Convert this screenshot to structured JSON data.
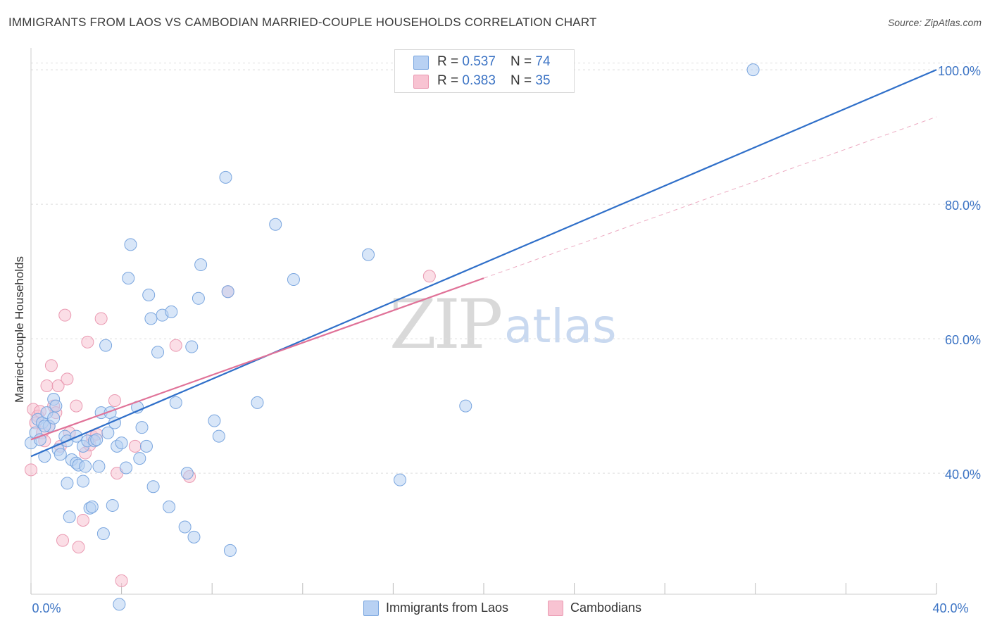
{
  "header": {
    "title": "IMMIGRANTS FROM LAOS VS CAMBODIAN MARRIED-COUPLE HOUSEHOLDS CORRELATION CHART",
    "source_prefix": "Source: ",
    "source_name": "ZipAtlas.com"
  },
  "watermark": {
    "zip": "ZIP",
    "atlas": "atlas"
  },
  "stats_legend": [
    {
      "r_label": "R = ",
      "r_value": "0.537",
      "n_label": "N = ",
      "n_value": "74"
    },
    {
      "r_label": "R = ",
      "r_value": "0.383",
      "n_label": "N = ",
      "n_value": "35"
    }
  ],
  "colors": {
    "laos_fill": "#b8d1f3",
    "laos_stroke": "#7aa6df",
    "laos_line": "#2f6fc9",
    "camb_fill": "#f8c3d2",
    "camb_stroke": "#ea9ab2",
    "camb_line": "#e07298",
    "axis_label": "#3b73c4",
    "grid": "#dddddd"
  },
  "chart_data": {
    "type": "scatter",
    "title": "IMMIGRANTS FROM LAOS VS CAMBODIAN MARRIED-COUPLE HOUSEHOLDS CORRELATION CHART",
    "xlabel": "",
    "ylabel": "Married-couple Households",
    "xlim": [
      0,
      40
    ],
    "ylim": [
      22,
      102
    ],
    "x_tick_labels": [
      {
        "value": 0,
        "label": "0.0%"
      },
      {
        "value": 40,
        "label": "40.0%"
      }
    ],
    "y_tick_labels": [
      {
        "value": 40,
        "label": "40.0%"
      },
      {
        "value": 60,
        "label": "60.0%"
      },
      {
        "value": 80,
        "label": "80.0%"
      },
      {
        "value": 100,
        "label": "100.0%"
      }
    ],
    "x_minor_ticks": [
      0,
      4,
      8,
      12,
      16,
      20,
      24,
      28,
      32,
      36,
      40
    ],
    "series": [
      {
        "name": "Immigrants from Laos",
        "R": 0.537,
        "N": 74,
        "trend": {
          "x0": 0,
          "y0": 42.5,
          "x1": 40,
          "y1": 100,
          "style": "solid",
          "x_end": 40
        },
        "points": [
          [
            0.0,
            44.5
          ],
          [
            0.2,
            46.0
          ],
          [
            0.3,
            48.0
          ],
          [
            0.4,
            45.0
          ],
          [
            0.5,
            47.5
          ],
          [
            0.6,
            42.5
          ],
          [
            0.7,
            49.0
          ],
          [
            0.8,
            47.0
          ],
          [
            1.0,
            51.0
          ],
          [
            1.1,
            50.0
          ],
          [
            1.2,
            43.5
          ],
          [
            1.3,
            42.8
          ],
          [
            1.5,
            45.5
          ],
          [
            1.6,
            44.8
          ],
          [
            1.6,
            38.5
          ],
          [
            1.7,
            33.5
          ],
          [
            1.8,
            42.0
          ],
          [
            2.0,
            41.5
          ],
          [
            2.0,
            45.5
          ],
          [
            2.1,
            41.2
          ],
          [
            2.3,
            44.0
          ],
          [
            2.3,
            38.8
          ],
          [
            2.4,
            41.0
          ],
          [
            2.5,
            44.8
          ],
          [
            2.6,
            34.8
          ],
          [
            2.7,
            35.0
          ],
          [
            2.8,
            44.8
          ],
          [
            3.0,
            41.0
          ],
          [
            3.1,
            49.0
          ],
          [
            3.2,
            31.0
          ],
          [
            3.3,
            59.0
          ],
          [
            3.4,
            46.0
          ],
          [
            3.5,
            49.0
          ],
          [
            3.6,
            35.2
          ],
          [
            3.7,
            47.5
          ],
          [
            3.8,
            44.0
          ],
          [
            3.9,
            20.5
          ],
          [
            4.0,
            44.5
          ],
          [
            4.2,
            40.8
          ],
          [
            4.3,
            69.0
          ],
          [
            4.4,
            74.0
          ],
          [
            4.7,
            49.8
          ],
          [
            4.8,
            42.2
          ],
          [
            4.9,
            46.8
          ],
          [
            5.1,
            44.0
          ],
          [
            5.2,
            66.5
          ],
          [
            5.3,
            63.0
          ],
          [
            5.4,
            38.0
          ],
          [
            5.6,
            58.0
          ],
          [
            5.8,
            63.5
          ],
          [
            6.1,
            35.0
          ],
          [
            6.2,
            64.0
          ],
          [
            6.4,
            50.5
          ],
          [
            6.8,
            32.0
          ],
          [
            6.9,
            40.0
          ],
          [
            7.1,
            58.8
          ],
          [
            7.2,
            30.5
          ],
          [
            7.4,
            66.0
          ],
          [
            7.5,
            71.0
          ],
          [
            8.1,
            47.8
          ],
          [
            8.3,
            45.5
          ],
          [
            8.6,
            84.0
          ],
          [
            8.7,
            67.0
          ],
          [
            8.8,
            28.5
          ],
          [
            10.0,
            50.5
          ],
          [
            10.8,
            77.0
          ],
          [
            11.6,
            68.8
          ],
          [
            14.9,
            72.5
          ],
          [
            16.3,
            39.0
          ],
          [
            19.2,
            50.0
          ],
          [
            31.9,
            100.0
          ],
          [
            2.9,
            45.0
          ],
          [
            1.0,
            48.2
          ],
          [
            0.6,
            47.0
          ]
        ]
      },
      {
        "name": "Cambodians",
        "R": 0.383,
        "N": 35,
        "trend": {
          "x0": 0,
          "y0": 45.0,
          "x1": 40,
          "y1": 93.0,
          "style": "solid-then-dashed",
          "x_end": 40,
          "solid_until": 20.0
        },
        "points": [
          [
            0.0,
            40.5
          ],
          [
            0.1,
            49.5
          ],
          [
            0.3,
            48.5
          ],
          [
            0.4,
            49.2
          ],
          [
            0.5,
            46.0
          ],
          [
            0.6,
            44.8
          ],
          [
            0.7,
            53.0
          ],
          [
            0.8,
            47.0
          ],
          [
            0.9,
            56.0
          ],
          [
            1.0,
            50.0
          ],
          [
            1.2,
            53.0
          ],
          [
            1.3,
            44.0
          ],
          [
            1.4,
            30.0
          ],
          [
            1.5,
            63.5
          ],
          [
            1.6,
            54.0
          ],
          [
            1.7,
            46.0
          ],
          [
            2.0,
            50.0
          ],
          [
            2.1,
            29.0
          ],
          [
            2.3,
            33.0
          ],
          [
            2.4,
            43.0
          ],
          [
            2.5,
            59.5
          ],
          [
            2.7,
            45.5
          ],
          [
            2.9,
            45.8
          ],
          [
            3.1,
            63.0
          ],
          [
            3.7,
            50.8
          ],
          [
            3.8,
            40.0
          ],
          [
            4.0,
            24.0
          ],
          [
            4.6,
            44.0
          ],
          [
            6.4,
            59.0
          ],
          [
            7.0,
            39.5
          ],
          [
            8.7,
            67.0
          ],
          [
            17.6,
            69.3
          ],
          [
            0.2,
            47.5
          ],
          [
            1.1,
            49.0
          ],
          [
            2.6,
            44.2
          ]
        ]
      }
    ]
  },
  "bottom_legend": [
    {
      "label": "Immigrants from Laos"
    },
    {
      "label": "Cambodians"
    }
  ]
}
